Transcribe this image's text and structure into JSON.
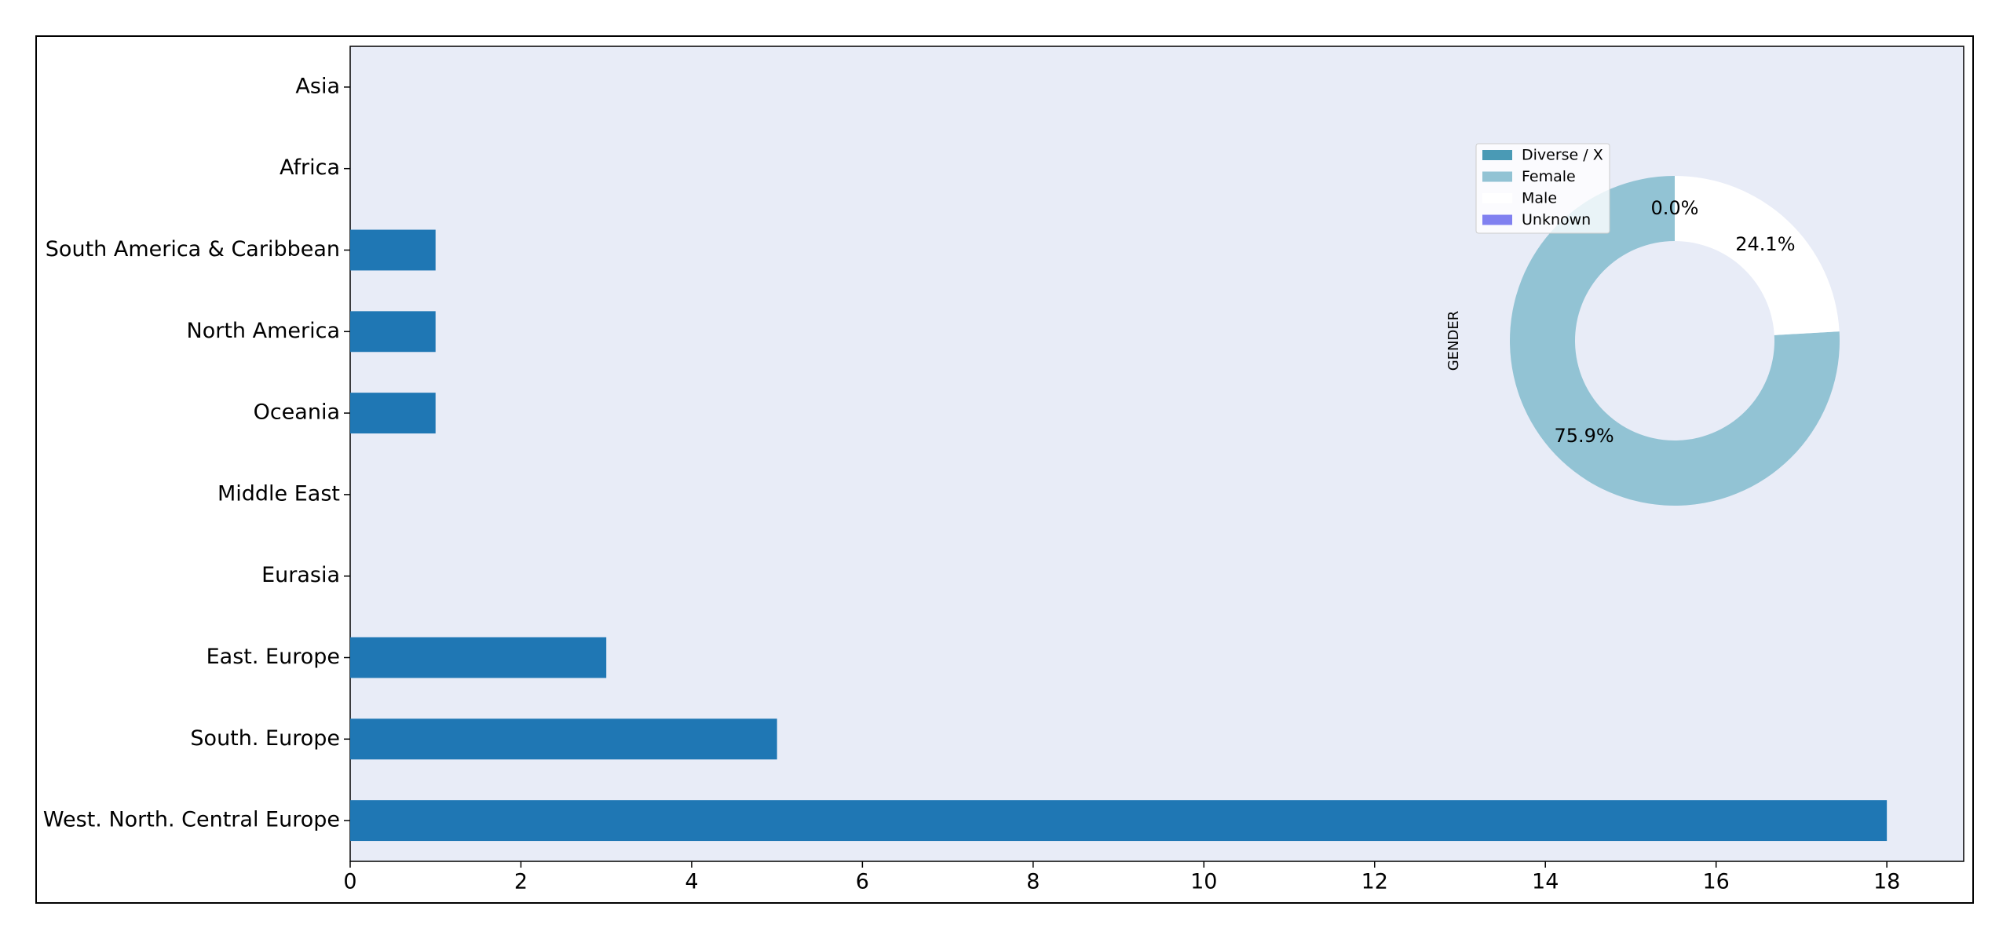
{
  "chart_data": [
    {
      "type": "barh",
      "categories": [
        "Asia",
        "Africa",
        "South America & Caribbean",
        "North America",
        "Oceania",
        "Middle East",
        "Eurasia",
        "East. Europe",
        "South. Europe",
        "West. North. Central Europe"
      ],
      "values": [
        0,
        0,
        1,
        1,
        1,
        0,
        0,
        3,
        5,
        18
      ],
      "color": "#1f77b4",
      "xlim": [
        0,
        18.9
      ],
      "xticks": [
        0,
        2,
        4,
        6,
        8,
        10,
        12,
        14,
        16,
        18
      ],
      "grid": false
    },
    {
      "type": "donut",
      "ylabel": "GENDER",
      "categories": [
        "Diverse / X",
        "Female",
        "Male",
        "Unknown"
      ],
      "values": [
        0,
        75.9,
        24.1,
        0
      ],
      "value_labels": [
        "0.0%",
        "75.9%",
        "24.1%",
        null
      ],
      "colors": [
        "#4a9ab5",
        "#92c3d4",
        "#ffffff",
        "#8080f0"
      ],
      "legend": "upper left"
    }
  ]
}
